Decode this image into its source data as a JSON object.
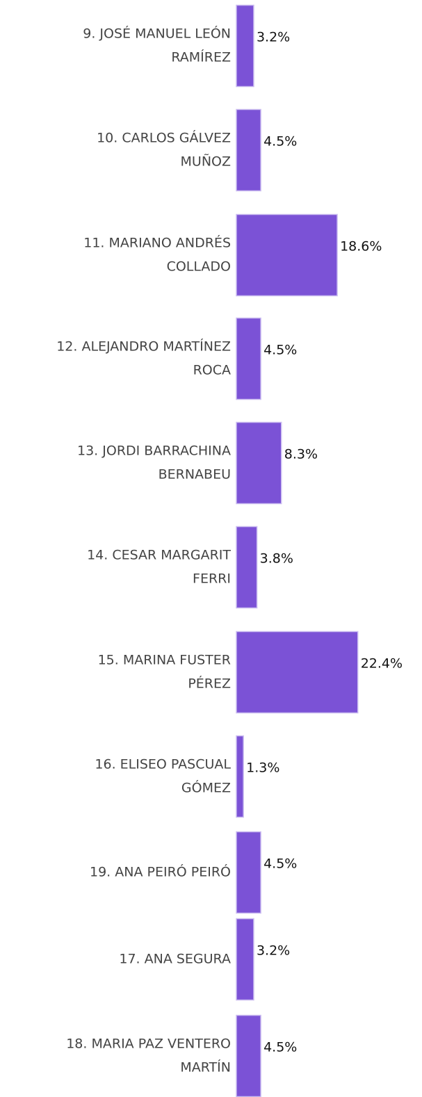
{
  "chart_data": {
    "type": "hbar",
    "color": "#7b52d6",
    "categories": [
      [
        "9. JOSÉ MANUEL LEÓN",
        "RAMÍREZ"
      ],
      [
        "10. CARLOS GÁLVEZ",
        "MUÑOZ"
      ],
      [
        "11. MARIANO ANDRÉS",
        "COLLADO"
      ],
      [
        "12. ALEJANDRO MARTÍNEZ",
        "ROCA"
      ],
      [
        "13. JORDI BARRACHINA",
        "BERNABEU"
      ],
      [
        "14. CESAR MARGARIT",
        "FERRI"
      ],
      [
        "15. MARINA FUSTER",
        "PÉREZ"
      ],
      [
        "16. ELISEO PASCUAL",
        "GÓMEZ"
      ],
      [
        "19. ANA PEIRÓ PEIRÓ"
      ],
      [
        "17. ANA SEGURA"
      ],
      [
        "18. MARIA PAZ VENTERO",
        "MARTÍN"
      ]
    ],
    "values": [
      3.2,
      4.5,
      18.6,
      4.5,
      8.3,
      3.8,
      22.4,
      1.3,
      4.5,
      3.2,
      4.5
    ],
    "value_labels": [
      "3.2%",
      "4.5%",
      "18.6%",
      "4.5%",
      "8.3%",
      "3.8%",
      "22.4%",
      "1.3%",
      "4.5%",
      "3.2%",
      "4.5%"
    ]
  }
}
